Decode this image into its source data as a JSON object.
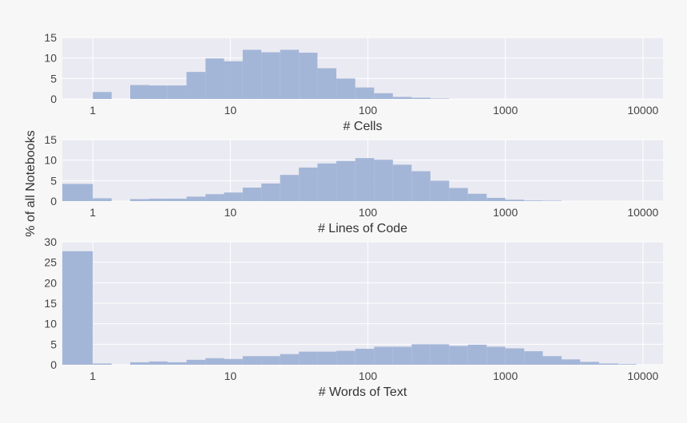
{
  "figure": {
    "shared_ylabel": "% of all Notebooks"
  },
  "colors": {
    "plot_bg": "#eaeaf2",
    "grid": "#ffffff",
    "bar": "#a4b6d8",
    "page_bg": "#f7f7f7"
  },
  "chart_data": [
    {
      "type": "bar",
      "title": "",
      "xlabel": "# Cells",
      "ylabel": "% of all Notebooks",
      "xscale": "log",
      "xlim": [
        0.6,
        14000
      ],
      "ylim": [
        0,
        15
      ],
      "yticks": [
        0,
        5,
        10,
        15
      ],
      "xticks": [
        1,
        10,
        100,
        1000,
        10000
      ],
      "xtick_labels": [
        "1",
        "10",
        "100",
        "1000",
        "10000"
      ],
      "grid": true,
      "bars": [
        {
          "x0": 1.0,
          "x1": 1.37,
          "value": 1.7
        },
        {
          "x0": 1.87,
          "x1": 2.56,
          "value": 3.4
        },
        {
          "x0": 2.56,
          "x1": 3.5,
          "value": 3.3
        },
        {
          "x0": 3.5,
          "x1": 4.8,
          "value": 3.3
        },
        {
          "x0": 4.8,
          "x1": 6.6,
          "value": 6.6
        },
        {
          "x0": 6.6,
          "x1": 9.0,
          "value": 9.9
        },
        {
          "x0": 9.0,
          "x1": 12.3,
          "value": 9.2
        },
        {
          "x0": 12.3,
          "x1": 16.8,
          "value": 12.0
        },
        {
          "x0": 16.8,
          "x1": 23.0,
          "value": 11.4
        },
        {
          "x0": 23.0,
          "x1": 31.5,
          "value": 12.0
        },
        {
          "x0": 31.5,
          "x1": 43.0,
          "value": 11.3
        },
        {
          "x0": 43.0,
          "x1": 59.0,
          "value": 7.5
        },
        {
          "x0": 59.0,
          "x1": 81.0,
          "value": 5.0
        },
        {
          "x0": 81.0,
          "x1": 111.0,
          "value": 2.8
        },
        {
          "x0": 111.0,
          "x1": 152.0,
          "value": 1.4
        },
        {
          "x0": 152.0,
          "x1": 208.0,
          "value": 0.5
        },
        {
          "x0": 208.0,
          "x1": 285.0,
          "value": 0.3
        },
        {
          "x0": 285.0,
          "x1": 390.0,
          "value": 0.1
        }
      ]
    },
    {
      "type": "bar",
      "title": "",
      "xlabel": "# Lines of Code",
      "ylabel": "% of all Notebooks",
      "xscale": "log",
      "xlim": [
        0.6,
        14000
      ],
      "ylim": [
        0,
        15
      ],
      "yticks": [
        0,
        5,
        10,
        15
      ],
      "xticks": [
        1,
        10,
        100,
        1000,
        10000
      ],
      "xtick_labels": [
        "1",
        "10",
        "100",
        "1000",
        "10000"
      ],
      "grid": true,
      "bars": [
        {
          "x0": 0.6,
          "x1": 1.0,
          "value": 4.2
        },
        {
          "x0": 1.0,
          "x1": 1.37,
          "value": 0.7
        },
        {
          "x0": 1.87,
          "x1": 2.56,
          "value": 0.5
        },
        {
          "x0": 2.56,
          "x1": 3.5,
          "value": 0.6
        },
        {
          "x0": 3.5,
          "x1": 4.8,
          "value": 0.6
        },
        {
          "x0": 4.8,
          "x1": 6.6,
          "value": 1.1
        },
        {
          "x0": 6.6,
          "x1": 9.0,
          "value": 1.7
        },
        {
          "x0": 9.0,
          "x1": 12.3,
          "value": 2.1
        },
        {
          "x0": 12.3,
          "x1": 16.8,
          "value": 3.3
        },
        {
          "x0": 16.8,
          "x1": 23.0,
          "value": 4.3
        },
        {
          "x0": 23.0,
          "x1": 31.5,
          "value": 6.4
        },
        {
          "x0": 31.5,
          "x1": 43.0,
          "value": 8.2
        },
        {
          "x0": 43.0,
          "x1": 59.0,
          "value": 9.2
        },
        {
          "x0": 59.0,
          "x1": 81.0,
          "value": 9.8
        },
        {
          "x0": 81.0,
          "x1": 111.0,
          "value": 10.5
        },
        {
          "x0": 111.0,
          "x1": 152.0,
          "value": 10.1
        },
        {
          "x0": 152.0,
          "x1": 208.0,
          "value": 8.9
        },
        {
          "x0": 208.0,
          "x1": 285.0,
          "value": 7.3
        },
        {
          "x0": 285.0,
          "x1": 390.0,
          "value": 5.0
        },
        {
          "x0": 390.0,
          "x1": 534.0,
          "value": 3.2
        },
        {
          "x0": 534.0,
          "x1": 731.0,
          "value": 1.8
        },
        {
          "x0": 731.0,
          "x1": 1000.0,
          "value": 0.8
        },
        {
          "x0": 1000.0,
          "x1": 1370.0,
          "value": 0.35
        },
        {
          "x0": 1370.0,
          "x1": 1870.0,
          "value": 0.15
        },
        {
          "x0": 1870.0,
          "x1": 2560.0,
          "value": 0.1
        }
      ]
    },
    {
      "type": "bar",
      "title": "",
      "xlabel": "# Words of Text",
      "ylabel": "% of all Notebooks",
      "xscale": "log",
      "xlim": [
        0.6,
        14000
      ],
      "ylim": [
        0,
        30
      ],
      "yticks": [
        0,
        5,
        10,
        15,
        20,
        25,
        30
      ],
      "xticks": [
        1,
        10,
        100,
        1000,
        10000
      ],
      "xtick_labels": [
        "1",
        "10",
        "100",
        "1000",
        "10000"
      ],
      "grid": true,
      "bars": [
        {
          "x0": 0.6,
          "x1": 1.0,
          "value": 27.7
        },
        {
          "x0": 1.0,
          "x1": 1.37,
          "value": 0.3
        },
        {
          "x0": 1.87,
          "x1": 2.56,
          "value": 0.6
        },
        {
          "x0": 2.56,
          "x1": 3.5,
          "value": 0.8
        },
        {
          "x0": 3.5,
          "x1": 4.8,
          "value": 0.6
        },
        {
          "x0": 4.8,
          "x1": 6.6,
          "value": 1.2
        },
        {
          "x0": 6.6,
          "x1": 9.0,
          "value": 1.6
        },
        {
          "x0": 9.0,
          "x1": 12.3,
          "value": 1.4
        },
        {
          "x0": 12.3,
          "x1": 16.8,
          "value": 2.1
        },
        {
          "x0": 16.8,
          "x1": 23.0,
          "value": 2.1
        },
        {
          "x0": 23.0,
          "x1": 31.5,
          "value": 2.6
        },
        {
          "x0": 31.5,
          "x1": 43.0,
          "value": 3.2
        },
        {
          "x0": 43.0,
          "x1": 59.0,
          "value": 3.2
        },
        {
          "x0": 59.0,
          "x1": 81.0,
          "value": 3.4
        },
        {
          "x0": 81.0,
          "x1": 111.0,
          "value": 3.9
        },
        {
          "x0": 111.0,
          "x1": 152.0,
          "value": 4.4
        },
        {
          "x0": 152.0,
          "x1": 208.0,
          "value": 4.4
        },
        {
          "x0": 208.0,
          "x1": 285.0,
          "value": 5.0
        },
        {
          "x0": 285.0,
          "x1": 390.0,
          "value": 5.0
        },
        {
          "x0": 390.0,
          "x1": 534.0,
          "value": 4.6
        },
        {
          "x0": 534.0,
          "x1": 731.0,
          "value": 4.9
        },
        {
          "x0": 731.0,
          "x1": 1000.0,
          "value": 4.4
        },
        {
          "x0": 1000.0,
          "x1": 1370.0,
          "value": 4.0
        },
        {
          "x0": 1370.0,
          "x1": 1870.0,
          "value": 3.3
        },
        {
          "x0": 1870.0,
          "x1": 2560.0,
          "value": 2.1
        },
        {
          "x0": 2560.0,
          "x1": 3500.0,
          "value": 1.3
        },
        {
          "x0": 3500.0,
          "x1": 4800.0,
          "value": 0.7
        },
        {
          "x0": 4800.0,
          "x1": 6600.0,
          "value": 0.3
        },
        {
          "x0": 6600.0,
          "x1": 9000.0,
          "value": 0.15
        }
      ]
    }
  ]
}
